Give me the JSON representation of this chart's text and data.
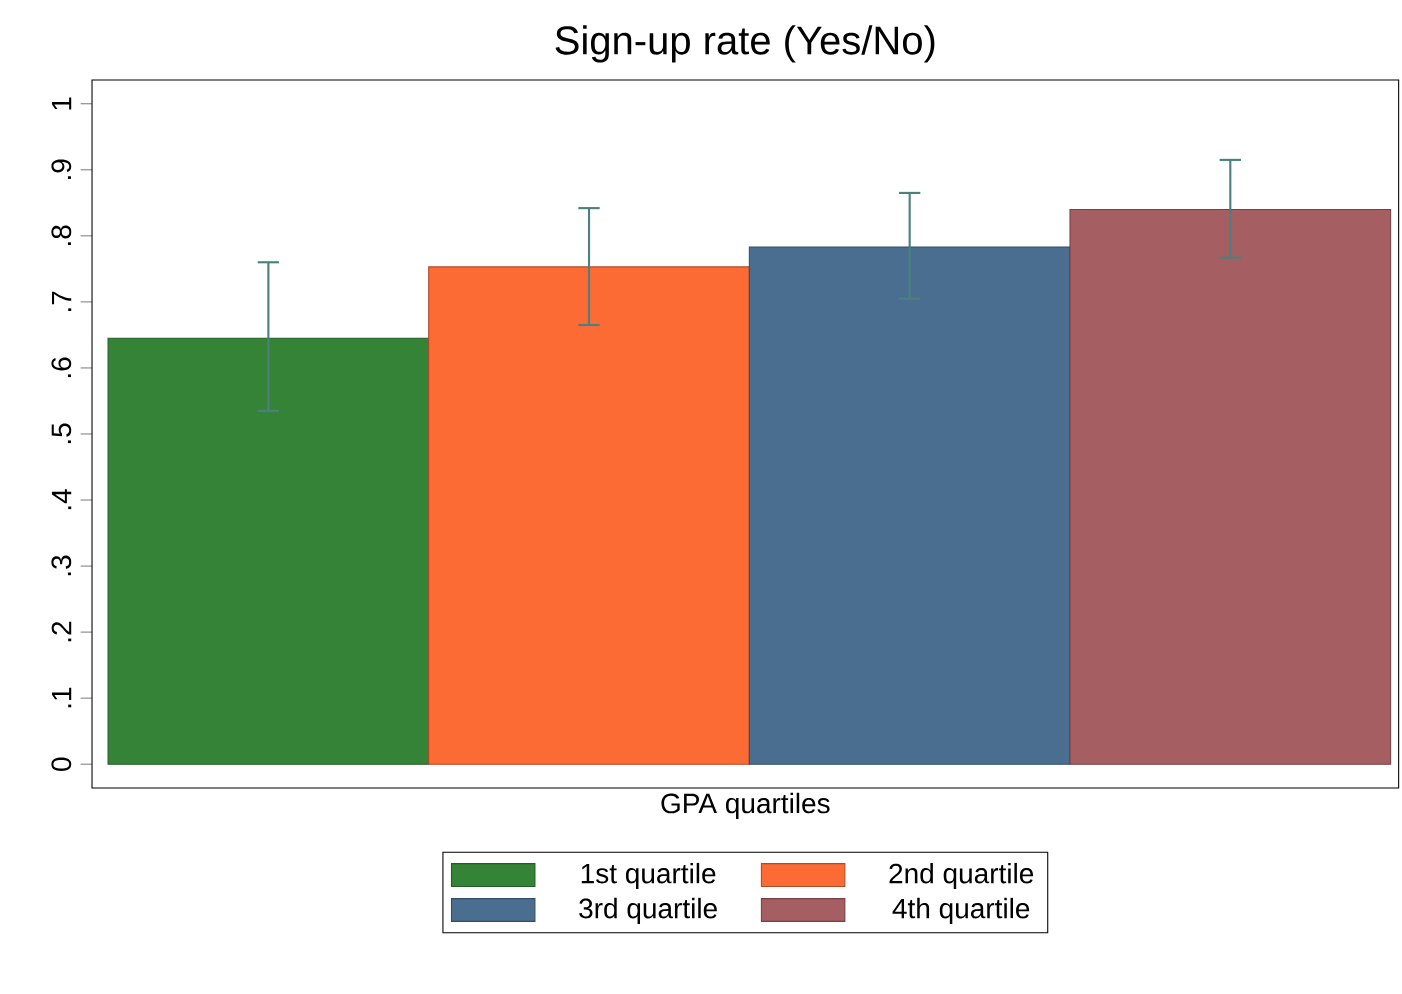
{
  "chart_data": {
    "type": "bar",
    "title": "Sign-up rate (Yes/No)",
    "xlabel": "GPA quartiles",
    "categories": [
      null
    ],
    "series": [
      {
        "name": "1st quartile",
        "color": "#358336",
        "values": [
          0.645
        ],
        "errors": [
          [
            0.535,
            0.76
          ]
        ]
      },
      {
        "name": "2nd quartile",
        "color": "#fd6b35",
        "values": [
          0.753
        ],
        "errors": [
          [
            0.665,
            0.842
          ]
        ]
      },
      {
        "name": "3rd quartile",
        "color": "#4a6e8f",
        "values": [
          0.783
        ],
        "errors": [
          [
            0.705,
            0.865
          ]
        ]
      },
      {
        "name": "4th quartile",
        "color": "#a55e62",
        "values": [
          0.84
        ],
        "errors": [
          [
            0.767,
            0.915
          ]
        ]
      }
    ],
    "ylim": [
      -0.036,
      1.036
    ],
    "yticks": [
      0,
      {
        "value": 0.1,
        "label": ".1"
      },
      {
        "value": 0.2,
        "label": ".2"
      },
      {
        "value": 0.3,
        "label": ".3"
      },
      {
        "value": 0.4,
        "label": ".4"
      },
      {
        "value": 0.5,
        "label": ".5"
      },
      {
        "value": 0.6,
        "label": ".6"
      },
      {
        "value": 0.7,
        "label": ".7"
      },
      {
        "value": 0.8,
        "label": ".8"
      },
      {
        "value": 0.9,
        "label": ".9"
      },
      1
    ],
    "grid": false,
    "legend": "bottom"
  }
}
